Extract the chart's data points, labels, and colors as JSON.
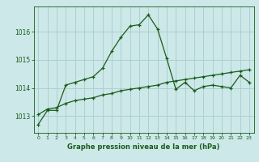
{
  "x": [
    0,
    1,
    2,
    3,
    4,
    5,
    6,
    7,
    8,
    9,
    10,
    11,
    12,
    13,
    14,
    15,
    16,
    17,
    18,
    19,
    20,
    21,
    22,
    23
  ],
  "line1": [
    1012.7,
    1013.2,
    1013.2,
    1014.1,
    1014.2,
    1014.3,
    1014.4,
    1014.7,
    1015.3,
    1015.8,
    1016.2,
    1016.25,
    1016.6,
    1016.1,
    1015.05,
    1013.95,
    1014.2,
    1013.9,
    1014.05,
    1014.1,
    1014.05,
    1014.0,
    1014.45,
    1014.2
  ],
  "line2": [
    1013.05,
    1013.25,
    1013.3,
    1013.45,
    1013.55,
    1013.6,
    1013.65,
    1013.75,
    1013.8,
    1013.9,
    1013.95,
    1014.0,
    1014.05,
    1014.1,
    1014.2,
    1014.25,
    1014.3,
    1014.35,
    1014.4,
    1014.45,
    1014.5,
    1014.55,
    1014.6,
    1014.65
  ],
  "yticks": [
    1013,
    1014,
    1015,
    1016
  ],
  "ylim": [
    1012.4,
    1016.9
  ],
  "xlim": [
    -0.5,
    23.5
  ],
  "line_color": "#1a5c1a",
  "bg_color": "#cce8e8",
  "grid_color": "#aacccc",
  "xlabel": "Graphe pression niveau de la mer (hPa)"
}
